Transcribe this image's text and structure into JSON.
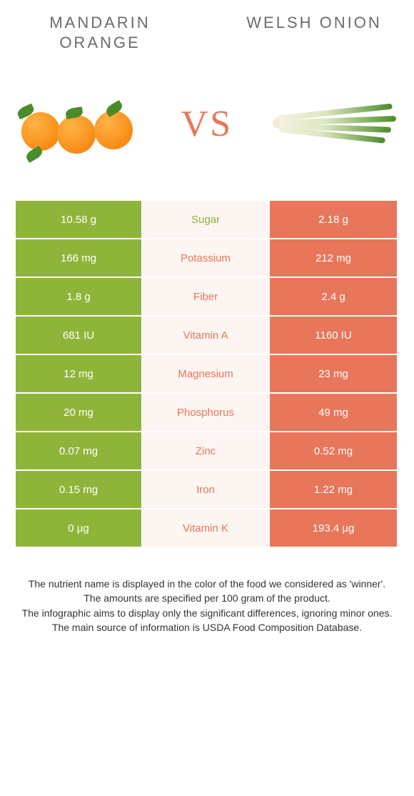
{
  "colors": {
    "left_bg": "#8fb43a",
    "right_bg": "#e8765a",
    "mid_bg": "#fdf5f2",
    "winner_left": "#8fb43a",
    "winner_right": "#e8765a",
    "title_text": "#6b6b6b"
  },
  "header": {
    "left_title": "MANDARIN ORANGE",
    "right_title": "WELSH ONION",
    "vs": "VS"
  },
  "rows": [
    {
      "left": "10.58 g",
      "label": "Sugar",
      "right": "2.18 g",
      "winner": "left"
    },
    {
      "left": "166 mg",
      "label": "Potassium",
      "right": "212 mg",
      "winner": "right"
    },
    {
      "left": "1.8 g",
      "label": "Fiber",
      "right": "2.4 g",
      "winner": "right"
    },
    {
      "left": "681 IU",
      "label": "Vitamin A",
      "right": "1160 IU",
      "winner": "right"
    },
    {
      "left": "12 mg",
      "label": "Magnesium",
      "right": "23 mg",
      "winner": "right"
    },
    {
      "left": "20 mg",
      "label": "Phosphorus",
      "right": "49 mg",
      "winner": "right"
    },
    {
      "left": "0.07 mg",
      "label": "Zinc",
      "right": "0.52 mg",
      "winner": "right"
    },
    {
      "left": "0.15 mg",
      "label": "Iron",
      "right": "1.22 mg",
      "winner": "right"
    },
    {
      "left": "0 µg",
      "label": "Vitamin K",
      "right": "193.4 µg",
      "winner": "right"
    }
  ],
  "footnotes": [
    "The nutrient name is displayed in the color of the food we considered as 'winner'.",
    "The amounts are specified per 100 gram of the product.",
    "The infographic aims to display only the significant differences, ignoring minor ones.",
    "The main source of information is USDA Food Composition Database."
  ]
}
